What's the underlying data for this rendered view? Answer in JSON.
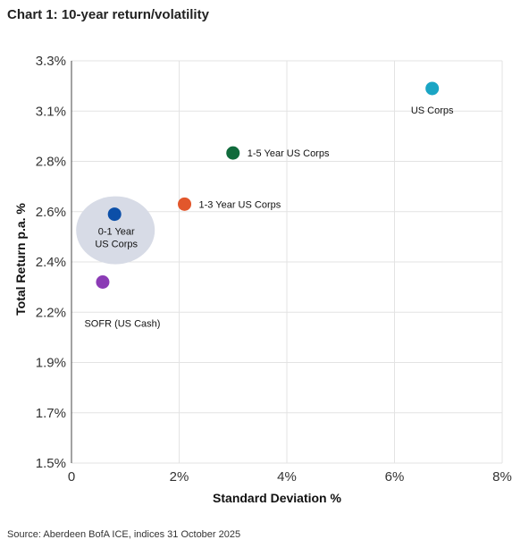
{
  "title": "Chart 1: 10-year return/volatility",
  "source": "Source: Aberdeen BofA ICE, indices 31 October 2025",
  "chart_data": {
    "type": "scatter",
    "xlabel": "Standard Deviation %",
    "ylabel": "Total Return p.a. %",
    "xlim": [
      0,
      8
    ],
    "ylim": [
      1.5,
      3.3
    ],
    "x_ticks": [
      0,
      2,
      4,
      6,
      8
    ],
    "x_tick_labels": [
      "0",
      "2%",
      "4%",
      "6%",
      "8%"
    ],
    "y_ticks": [
      1.5,
      1.7,
      1.9,
      2.2,
      2.4,
      2.6,
      2.8,
      3.1,
      3.3
    ],
    "y_tick_labels": [
      "1.5%",
      "1.7%",
      "1.9%",
      "2.2%",
      "2.4%",
      "2.6%",
      "2.8%",
      "3.1%",
      "3.3%"
    ],
    "grid": true,
    "points": [
      {
        "label": "US Corps",
        "x": 6.7,
        "y": 3.19,
        "color": "#1aa5c4"
      },
      {
        "label": "1-5 Year US Corps",
        "x": 3.0,
        "y": 2.85,
        "color": "#116b3c"
      },
      {
        "label": "1-3 Year US Corps",
        "x": 2.1,
        "y": 2.63,
        "color": "#e2572c"
      },
      {
        "label_lines": [
          "0-1 Year",
          "US Corps"
        ],
        "x": 0.8,
        "y": 2.59,
        "color": "#0c4fa8",
        "highlight": true,
        "highlight_color": "#d7dbe6"
      },
      {
        "label": "SOFR (US Cash)",
        "x": 0.58,
        "y": 2.32,
        "color": "#8b3bb5"
      }
    ]
  }
}
